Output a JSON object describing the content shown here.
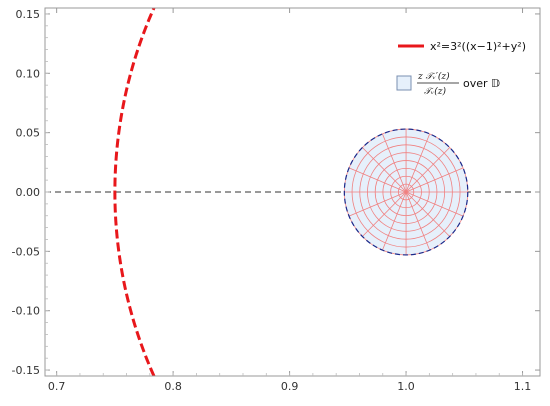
{
  "chart_data": {
    "type": "line",
    "xlim": [
      0.69,
      1.115
    ],
    "ylim": [
      -0.155,
      0.155
    ],
    "x_ticks": [
      "0.7",
      "0.8",
      "0.9",
      "1.0",
      "1.1"
    ],
    "y_ticks": [
      "0.15",
      "0.10",
      "0.05",
      "0.00",
      "-0.05",
      "-0.10",
      "-0.15"
    ],
    "grid": false,
    "legend_position": "top-right",
    "curve": {
      "center_x": 1.125,
      "radius": 0.375,
      "color": "#e8171b",
      "style": "dashed"
    },
    "region": {
      "center": [
        1.0,
        0.0
      ],
      "radius": 0.053,
      "fill": "#e6f0fb",
      "edge_color": "#1a2a8c",
      "mesh_color": "#f08080",
      "mesh_rings": 8,
      "mesh_spokes": 16
    },
    "reference_line": {
      "y": 0.0,
      "color": "#333333",
      "style": "dashed"
    },
    "legend": {
      "curve_label": "x²=3²((x−1)²+y²)",
      "region_numerator": "z 𝒯ᵥ′(z)",
      "region_denominator": "𝒯ᵥ(z)",
      "region_suffix": "over 𝔻"
    }
  }
}
